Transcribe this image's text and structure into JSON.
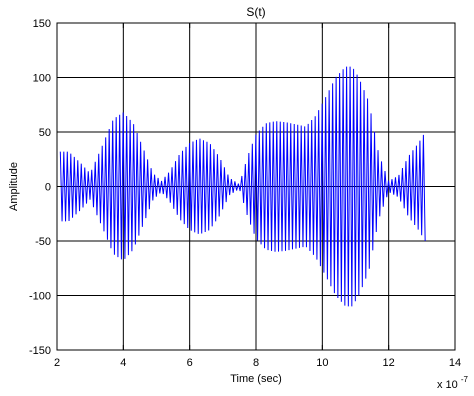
{
  "chart_data": {
    "type": "line",
    "title": "S(t)",
    "xlabel": "Time (sec)",
    "ylabel": "Amplitude",
    "x_exponent": "x 10",
    "x_exponent_power": "-7",
    "xlim": [
      2,
      14
    ],
    "ylim": [
      -150,
      150
    ],
    "x_ticks": [
      2,
      4,
      6,
      8,
      10,
      12,
      14
    ],
    "y_ticks": [
      -150,
      -100,
      -50,
      0,
      50,
      100,
      150
    ],
    "x_tick_labels": [
      "2",
      "4",
      "6",
      "8",
      "10",
      "12",
      "14"
    ],
    "y_tick_labels": [
      "-150",
      "-100",
      "-50",
      "0",
      "50",
      "100",
      "150"
    ],
    "grid": true,
    "line_color": "#0000ff",
    "carrier_cycles_per_unit": 9.5,
    "series": [
      {
        "envelope": {
          "x": [
            2.1,
            2.35,
            2.7,
            3.0,
            3.4,
            3.7,
            4.0,
            4.3,
            4.6,
            4.9,
            5.15,
            5.4,
            5.7,
            6.0,
            6.3,
            6.6,
            6.9,
            7.2,
            7.5,
            7.75,
            8.0,
            8.3,
            8.6,
            8.9,
            9.2,
            9.5,
            9.8,
            10.1,
            10.4,
            10.7,
            10.9,
            11.1,
            11.4,
            11.7,
            12.0,
            12.3,
            12.6,
            12.9,
            13.1
          ],
          "y": [
            32,
            32,
            22,
            12,
            40,
            62,
            68,
            58,
            35,
            12,
            5,
            14,
            30,
            40,
            44,
            40,
            27,
            8,
            2,
            28,
            48,
            58,
            60,
            59,
            57,
            55,
            65,
            82,
            100,
            110,
            110,
            100,
            78,
            30,
            5,
            10,
            28,
            40,
            50
          ]
        }
      }
    ]
  }
}
